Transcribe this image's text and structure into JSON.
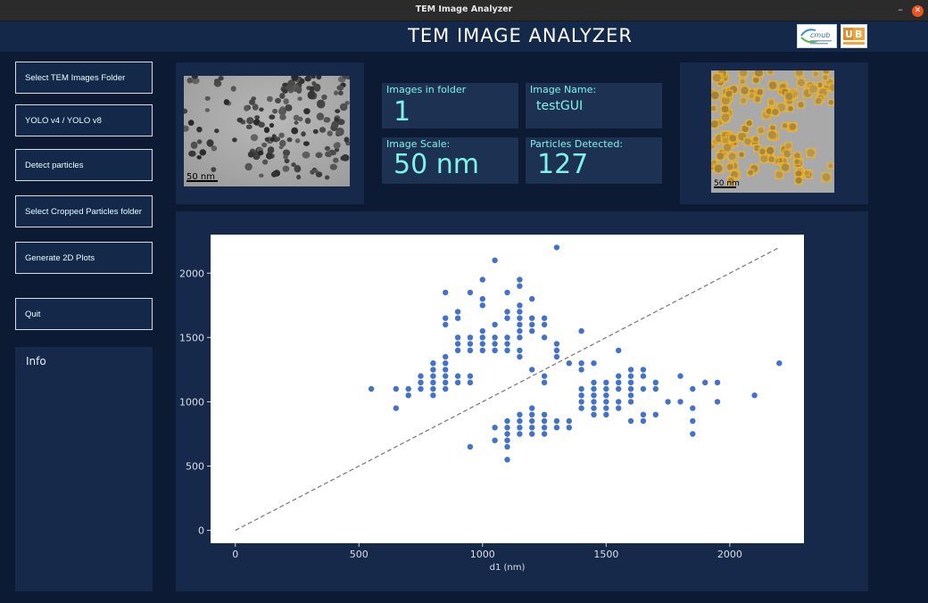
{
  "window": {
    "title": "TEM Image Analyzer"
  },
  "header": {
    "title": "TEM IMAGE ANALYZER"
  },
  "sidebar": {
    "buttons": [
      {
        "label": "Select TEM Images Folder"
      },
      {
        "label": "YOLO v4 /  YOLO v8"
      },
      {
        "label": "Detect particles"
      },
      {
        "label": "Select Cropped Particles folder"
      },
      {
        "label": "Generate 2D Plots"
      },
      {
        "label": "Quit"
      }
    ],
    "info_label": "Info"
  },
  "stats": {
    "images_in_folder": {
      "label": "Images in folder",
      "value": "1"
    },
    "image_name": {
      "label": "Image Name:",
      "value": "testGUI"
    },
    "image_scale": {
      "label": "Image Scale:",
      "value": "50 nm"
    },
    "particles_detected": {
      "label": "Particles Detected:",
      "value": "127"
    }
  },
  "images": {
    "original_scale_label": "50 nm",
    "detected_scale_label": "50 nm"
  },
  "chart_data": {
    "type": "scatter",
    "xlabel": "d1 (nm)",
    "ylabel": "",
    "xlim": [
      -100,
      2300
    ],
    "ylim": [
      -100,
      2300
    ],
    "x_ticks": [
      0,
      500,
      1000,
      1500,
      2000
    ],
    "y_ticks": [
      0,
      500,
      1000,
      1500,
      2000
    ],
    "reference_line": {
      "from": [
        0,
        0
      ],
      "to": [
        2200,
        2200
      ],
      "style": "dashed"
    },
    "marker_color": "#4472c4",
    "points": [
      [
        550,
        1100
      ],
      [
        650,
        1100
      ],
      [
        650,
        950
      ],
      [
        700,
        1100
      ],
      [
        700,
        1050
      ],
      [
        750,
        1200
      ],
      [
        750,
        1150
      ],
      [
        750,
        1100
      ],
      [
        800,
        1300
      ],
      [
        800,
        1250
      ],
      [
        800,
        1200
      ],
      [
        800,
        1150
      ],
      [
        800,
        1100
      ],
      [
        800,
        1050
      ],
      [
        850,
        1850
      ],
      [
        850,
        1650
      ],
      [
        850,
        1600
      ],
      [
        850,
        1350
      ],
      [
        850,
        1300
      ],
      [
        850,
        1250
      ],
      [
        850,
        1200
      ],
      [
        850,
        1150
      ],
      [
        850,
        1100
      ],
      [
        900,
        1700
      ],
      [
        900,
        1650
      ],
      [
        900,
        1500
      ],
      [
        900,
        1450
      ],
      [
        900,
        1400
      ],
      [
        900,
        1200
      ],
      [
        900,
        1150
      ],
      [
        950,
        1850
      ],
      [
        950,
        1500
      ],
      [
        950,
        1450
      ],
      [
        950,
        1400
      ],
      [
        950,
        1200
      ],
      [
        950,
        1150
      ],
      [
        950,
        650
      ],
      [
        1000,
        1950
      ],
      [
        1000,
        1800
      ],
      [
        1000,
        1750
      ],
      [
        1000,
        1550
      ],
      [
        1000,
        1500
      ],
      [
        1000,
        1450
      ],
      [
        1000,
        1400
      ],
      [
        1050,
        2100
      ],
      [
        1050,
        1600
      ],
      [
        1050,
        1500
      ],
      [
        1050,
        1450
      ],
      [
        1050,
        1400
      ],
      [
        1050,
        800
      ],
      [
        1050,
        700
      ],
      [
        1100,
        1850
      ],
      [
        1100,
        1700
      ],
      [
        1100,
        1650
      ],
      [
        1100,
        1500
      ],
      [
        1100,
        1450
      ],
      [
        1100,
        1400
      ],
      [
        1100,
        850
      ],
      [
        1100,
        800
      ],
      [
        1100,
        750
      ],
      [
        1100,
        700
      ],
      [
        1100,
        650
      ],
      [
        1100,
        550
      ],
      [
        1150,
        1950
      ],
      [
        1150,
        1900
      ],
      [
        1150,
        1750
      ],
      [
        1150,
        1700
      ],
      [
        1150,
        1650
      ],
      [
        1150,
        1600
      ],
      [
        1150,
        1550
      ],
      [
        1150,
        1500
      ],
      [
        1150,
        1400
      ],
      [
        1150,
        1350
      ],
      [
        1150,
        900
      ],
      [
        1150,
        850
      ],
      [
        1150,
        800
      ],
      [
        1150,
        750
      ],
      [
        1200,
        1800
      ],
      [
        1200,
        1650
      ],
      [
        1200,
        1600
      ],
      [
        1200,
        1550
      ],
      [
        1200,
        1250
      ],
      [
        1200,
        950
      ],
      [
        1200,
        900
      ],
      [
        1200,
        850
      ],
      [
        1200,
        800
      ],
      [
        1200,
        750
      ],
      [
        1250,
        1650
      ],
      [
        1250,
        1600
      ],
      [
        1250,
        1500
      ],
      [
        1250,
        1200
      ],
      [
        1250,
        1150
      ],
      [
        1250,
        900
      ],
      [
        1250,
        850
      ],
      [
        1250,
        800
      ],
      [
        1250,
        750
      ],
      [
        1300,
        2200
      ],
      [
        1300,
        1450
      ],
      [
        1300,
        1400
      ],
      [
        1300,
        1350
      ],
      [
        1300,
        850
      ],
      [
        1300,
        800
      ],
      [
        1350,
        1300
      ],
      [
        1350,
        850
      ],
      [
        1350,
        800
      ],
      [
        1400,
        1550
      ],
      [
        1400,
        1300
      ],
      [
        1400,
        1250
      ],
      [
        1400,
        1100
      ],
      [
        1400,
        1050
      ],
      [
        1400,
        1000
      ],
      [
        1400,
        950
      ],
      [
        1450,
        1300
      ],
      [
        1450,
        1150
      ],
      [
        1450,
        1100
      ],
      [
        1450,
        1050
      ],
      [
        1450,
        1000
      ],
      [
        1450,
        950
      ],
      [
        1450,
        900
      ],
      [
        1500,
        1150
      ],
      [
        1500,
        1100
      ],
      [
        1500,
        1050
      ],
      [
        1500,
        1000
      ],
      [
        1500,
        950
      ],
      [
        1500,
        900
      ],
      [
        1550,
        1400
      ],
      [
        1550,
        1200
      ],
      [
        1550,
        1150
      ],
      [
        1550,
        1100
      ],
      [
        1550,
        1000
      ],
      [
        1550,
        950
      ],
      [
        1600,
        1250
      ],
      [
        1600,
        1200
      ],
      [
        1600,
        1150
      ],
      [
        1600,
        1100
      ],
      [
        1600,
        1050
      ],
      [
        1600,
        1000
      ],
      [
        1600,
        850
      ],
      [
        1650,
        1250
      ],
      [
        1650,
        1200
      ],
      [
        1650,
        1100
      ],
      [
        1650,
        900
      ],
      [
        1650,
        850
      ],
      [
        1700,
        1150
      ],
      [
        1700,
        1100
      ],
      [
        1700,
        900
      ],
      [
        1750,
        1000
      ],
      [
        1800,
        1200
      ],
      [
        1800,
        1000
      ],
      [
        1850,
        1100
      ],
      [
        1850,
        950
      ],
      [
        1850,
        850
      ],
      [
        1850,
        750
      ],
      [
        1900,
        1150
      ],
      [
        1950,
        1150
      ],
      [
        1950,
        1000
      ],
      [
        2100,
        1050
      ],
      [
        2200,
        1300
      ]
    ]
  }
}
